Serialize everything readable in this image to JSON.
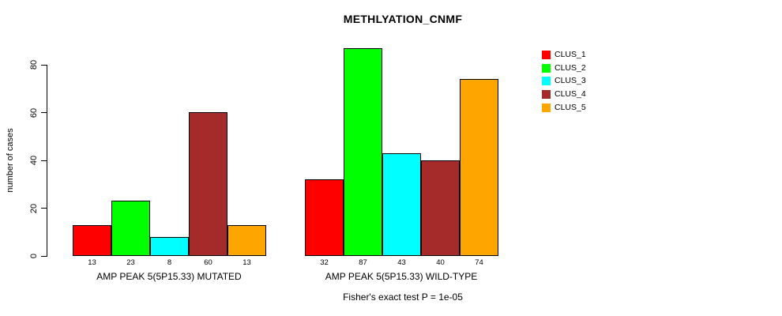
{
  "chart_data": {
    "type": "bar",
    "title": "METHLYATION_CNMF",
    "xlabel": "",
    "ylabel": "number of cases",
    "ylim": [
      0,
      87
    ],
    "yticks": [
      0,
      20,
      40,
      60,
      80
    ],
    "grid": false,
    "legend_position": "right",
    "bar_value_labels": true,
    "annotation": "Fisher's exact test P = 1e-05",
    "categories": [
      "AMP PEAK  5(5P15.33) MUTATED",
      "AMP PEAK  5(5P15.33) WILD-TYPE"
    ],
    "series": [
      {
        "name": "CLUS_1",
        "color": "#FF0000",
        "values": [
          13,
          32
        ]
      },
      {
        "name": "CLUS_2",
        "color": "#00FF00",
        "values": [
          23,
          87
        ]
      },
      {
        "name": "CLUS_3",
        "color": "#00FFFF",
        "values": [
          8,
          43
        ]
      },
      {
        "name": "CLUS_4",
        "color": "#A52A2A",
        "values": [
          60,
          40
        ]
      },
      {
        "name": "CLUS_5",
        "color": "#FFA500",
        "values": [
          13,
          74
        ]
      }
    ]
  }
}
